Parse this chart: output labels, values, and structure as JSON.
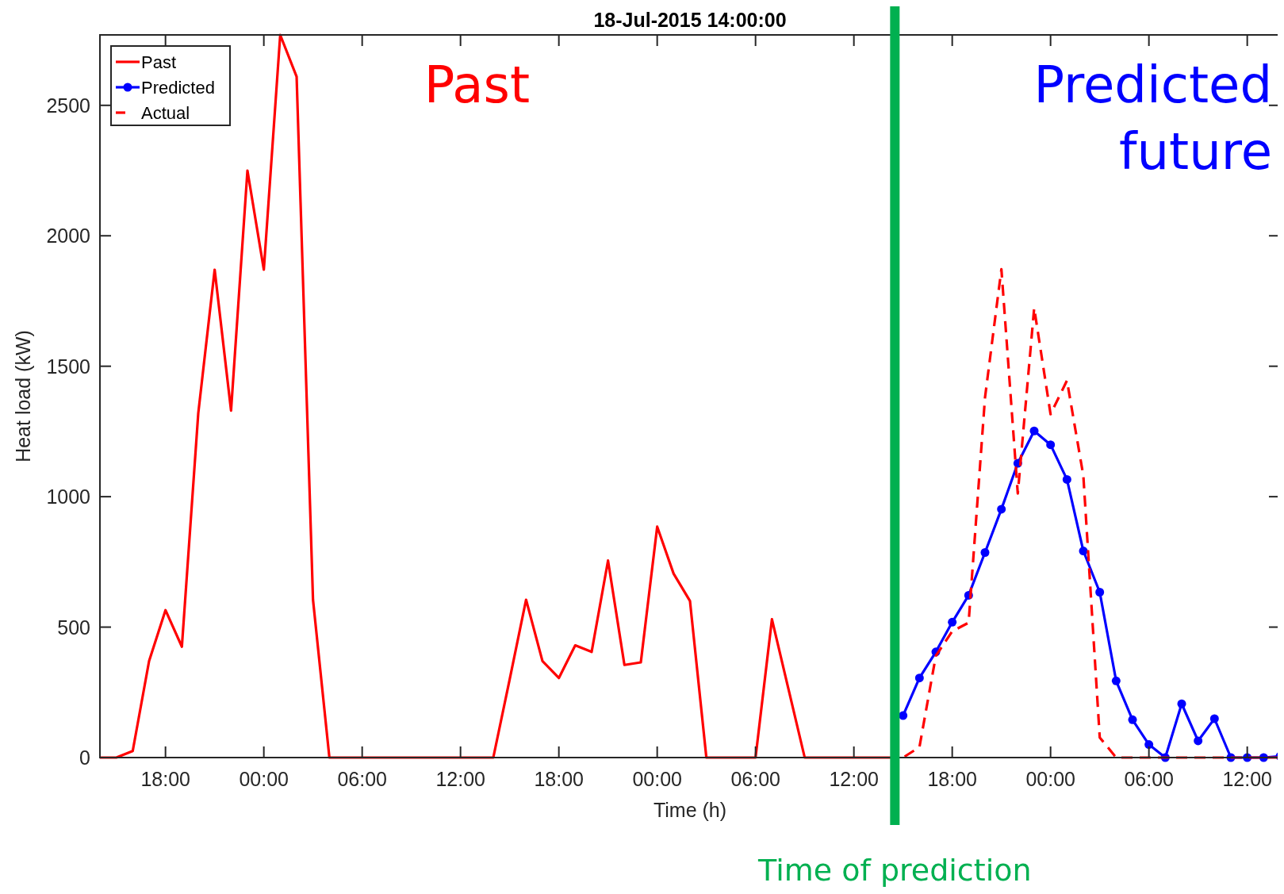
{
  "chart_data": {
    "type": "line",
    "title": "18-Jul-2015 14:00:00",
    "xlabel": "Time (h)",
    "ylabel": "Heat load (kW)",
    "xlim": [
      "2015-07-16T14:00",
      "2015-07-19T14:00"
    ],
    "ylim": [
      0,
      2770
    ],
    "xticks": [
      {
        "value": "2015-07-16T18:00",
        "label": "18:00"
      },
      {
        "value": "2015-07-17T00:00",
        "label": "00:00"
      },
      {
        "value": "2015-07-17T06:00",
        "label": "06:00"
      },
      {
        "value": "2015-07-17T12:00",
        "label": "12:00"
      },
      {
        "value": "2015-07-17T18:00",
        "label": "18:00"
      },
      {
        "value": "2015-07-18T00:00",
        "label": "00:00"
      },
      {
        "value": "2015-07-18T06:00",
        "label": "06:00"
      },
      {
        "value": "2015-07-18T12:00",
        "label": "12:00"
      },
      {
        "value": "2015-07-18T18:00",
        "label": "18:00"
      },
      {
        "value": "2015-07-19T00:00",
        "label": "00:00"
      },
      {
        "value": "2015-07-19T06:00",
        "label": "06:00"
      },
      {
        "value": "2015-07-19T12:00",
        "label": "12:00"
      }
    ],
    "yticks": [
      0,
      500,
      1000,
      1500,
      2000,
      2500
    ],
    "grid": false,
    "legend": "top left",
    "series": [
      {
        "name": "Past",
        "color": "#ff0000",
        "line_style": "solid",
        "marker": "none",
        "x": [
          "2015-07-16T14:00",
          "2015-07-16T15:00",
          "2015-07-16T16:00",
          "2015-07-16T17:00",
          "2015-07-16T18:00",
          "2015-07-16T19:00",
          "2015-07-16T20:00",
          "2015-07-16T21:00",
          "2015-07-16T22:00",
          "2015-07-16T23:00",
          "2015-07-17T00:00",
          "2015-07-17T01:00",
          "2015-07-17T02:00",
          "2015-07-17T03:00",
          "2015-07-17T04:00",
          "2015-07-17T05:00",
          "2015-07-17T06:00",
          "2015-07-17T07:00",
          "2015-07-17T08:00",
          "2015-07-17T09:00",
          "2015-07-17T10:00",
          "2015-07-17T11:00",
          "2015-07-17T12:00",
          "2015-07-17T13:00",
          "2015-07-17T14:00",
          "2015-07-17T15:00",
          "2015-07-17T16:00",
          "2015-07-17T17:00",
          "2015-07-17T18:00",
          "2015-07-17T19:00",
          "2015-07-17T20:00",
          "2015-07-17T21:00",
          "2015-07-17T22:00",
          "2015-07-17T23:00",
          "2015-07-18T00:00",
          "2015-07-18T01:00",
          "2015-07-18T02:00",
          "2015-07-18T03:00",
          "2015-07-18T04:00",
          "2015-07-18T05:00",
          "2015-07-18T06:00",
          "2015-07-18T07:00",
          "2015-07-18T08:00",
          "2015-07-18T09:00",
          "2015-07-18T10:00",
          "2015-07-18T11:00",
          "2015-07-18T12:00",
          "2015-07-18T13:00",
          "2015-07-18T14:00"
        ],
        "values": [
          0,
          0,
          25,
          370,
          565,
          425,
          1320,
          1870,
          1330,
          2250,
          1870,
          2770,
          2610,
          605,
          0,
          0,
          0,
          0,
          0,
          0,
          0,
          0,
          0,
          0,
          0,
          300,
          605,
          370,
          305,
          430,
          405,
          755,
          355,
          365,
          885,
          705,
          600,
          0,
          0,
          0,
          0,
          530,
          265,
          0,
          0,
          0,
          0,
          0,
          0
        ]
      },
      {
        "name": "Predicted",
        "color": "#0000ff",
        "line_style": "solid",
        "marker": "circle",
        "x": [
          "2015-07-18T15:00",
          "2015-07-18T16:00",
          "2015-07-18T17:00",
          "2015-07-18T18:00",
          "2015-07-18T19:00",
          "2015-07-18T20:00",
          "2015-07-18T21:00",
          "2015-07-18T22:00",
          "2015-07-18T23:00",
          "2015-07-19T00:00",
          "2015-07-19T01:00",
          "2015-07-19T02:00",
          "2015-07-19T03:00",
          "2015-07-19T04:00",
          "2015-07-19T05:00",
          "2015-07-19T06:00",
          "2015-07-19T07:00",
          "2015-07-19T08:00",
          "2015-07-19T09:00",
          "2015-07-19T10:00",
          "2015-07-19T11:00",
          "2015-07-19T12:00",
          "2015-07-19T13:00",
          "2015-07-19T14:00"
        ],
        "values": [
          161,
          305,
          405,
          519,
          622,
          786,
          952,
          1128,
          1252,
          1199,
          1066,
          792,
          634,
          294,
          145,
          50,
          0,
          206,
          64,
          149,
          0,
          0,
          0,
          5
        ]
      },
      {
        "name": "Actual",
        "color": "#ff0000",
        "line_style": "dashed",
        "marker": "none",
        "x": [
          "2015-07-18T14:00",
          "2015-07-18T15:00",
          "2015-07-18T16:00",
          "2015-07-18T17:00",
          "2015-07-18T18:00",
          "2015-07-18T19:00",
          "2015-07-18T20:00",
          "2015-07-18T21:00",
          "2015-07-18T22:00",
          "2015-07-18T23:00",
          "2015-07-19T00:00",
          "2015-07-19T01:00",
          "2015-07-19T02:00",
          "2015-07-19T03:00",
          "2015-07-19T04:00",
          "2015-07-19T05:00",
          "2015-07-19T06:00",
          "2015-07-19T07:00",
          "2015-07-19T08:00",
          "2015-07-19T09:00",
          "2015-07-19T10:00",
          "2015-07-19T11:00",
          "2015-07-19T12:00",
          "2015-07-19T13:00",
          "2015-07-19T14:00"
        ],
        "values": [
          0,
          0,
          40,
          390,
          484,
          517,
          1380,
          1872,
          1012,
          1723,
          1316,
          1445,
          1080,
          77,
          0,
          0,
          0,
          0,
          0,
          0,
          0,
          0,
          null,
          0,
          0
        ]
      }
    ],
    "ref_lines": [
      {
        "axis": "x",
        "value": "2015-07-18T14:30",
        "label": "Time of prediction",
        "color": "#00b050"
      }
    ],
    "annotations": [
      "Past",
      "Predicted future"
    ]
  }
}
